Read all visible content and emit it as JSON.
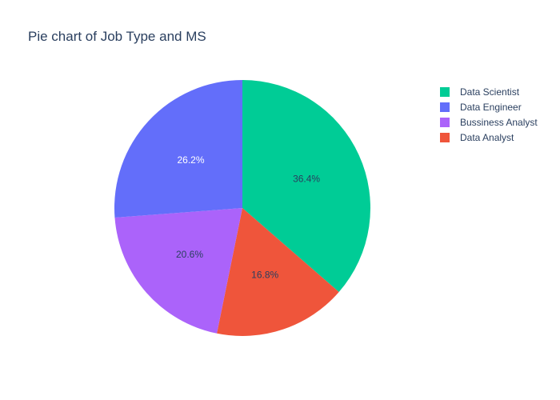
{
  "chart_data": {
    "type": "pie",
    "title": "Pie chart of Job Type and MS",
    "legend_position": "top-right",
    "slices": [
      {
        "label": "Data Scientist",
        "percent": 36.4,
        "color": "#00cc96",
        "text_color": "#2a3f5f"
      },
      {
        "label": "Data Engineer",
        "percent": 26.2,
        "color": "#636efa",
        "text_color": "#ffffff"
      },
      {
        "label": "Bussiness Analyst",
        "percent": 20.6,
        "color": "#ab63fa",
        "text_color": "#2a3f5f"
      },
      {
        "label": "Data Analyst",
        "percent": 16.8,
        "color": "#ef553b",
        "text_color": "#2a3f5f"
      }
    ],
    "slice_order_clockwise_from_top": [
      "Data Scientist",
      "Data Analyst",
      "Bussiness Analyst",
      "Data Engineer"
    ]
  }
}
